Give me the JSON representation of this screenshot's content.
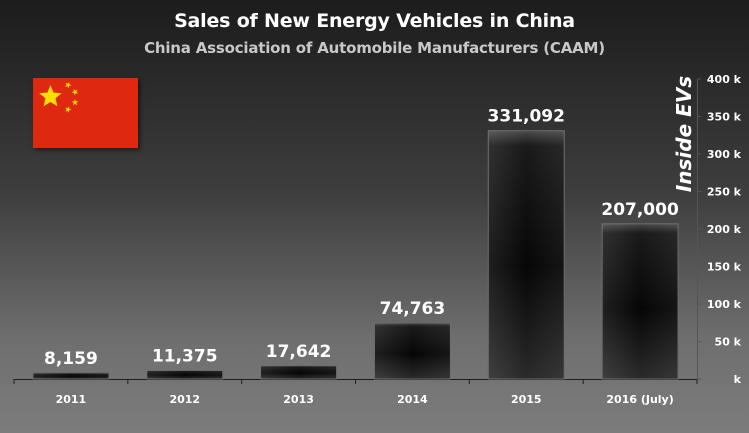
{
  "chart_data": {
    "type": "bar",
    "title": "Sales of New Energy Vehicles in China",
    "subtitle": "China Association of Automobile Manufacturers (CAAM)",
    "categories": [
      "2011",
      "2012",
      "2013",
      "2014",
      "2015",
      "2016 (July)"
    ],
    "values": [
      8159,
      11375,
      17642,
      74763,
      331092,
      207000
    ],
    "data_labels": [
      "8,159",
      "11,375",
      "17,642",
      "74,763",
      "331,092",
      "207,000"
    ],
    "ylim": [
      0,
      400000
    ],
    "yticks": [
      0,
      50000,
      100000,
      150000,
      200000,
      250000,
      300000,
      350000,
      400000
    ],
    "ytick_labels": [
      "k",
      "50 k",
      "100 k",
      "150 k",
      "200 k",
      "250 k",
      "300 k",
      "350 k",
      "400 k"
    ],
    "xlabel": "",
    "ylabel": "",
    "grid": false,
    "legend": "none",
    "y_axis_side": "right"
  },
  "watermark": "Inside EVs",
  "flag": "china-flag",
  "colors": {
    "bar": "#111111",
    "text": "#ffffff",
    "subtitle": "#c8c8c8",
    "flag_red": "#de2910",
    "flag_star": "#ffde00"
  }
}
